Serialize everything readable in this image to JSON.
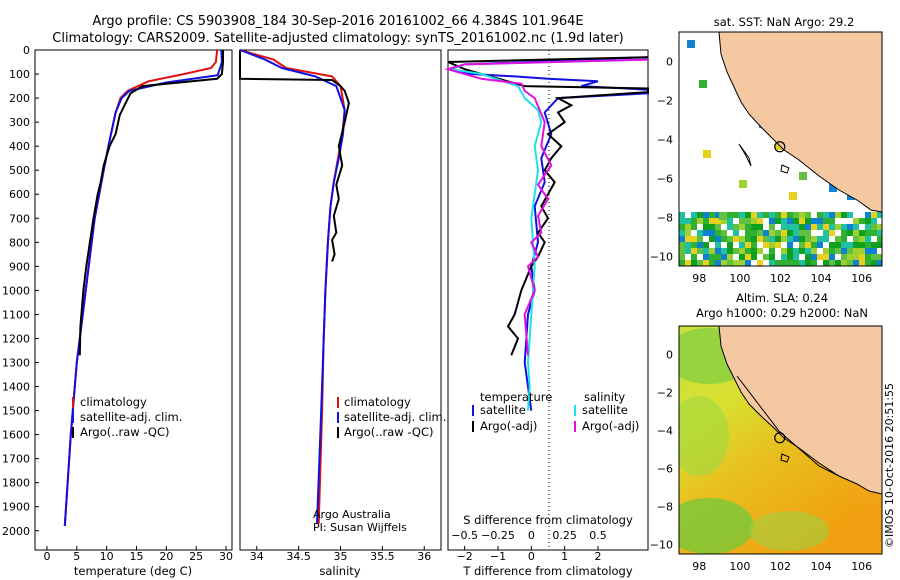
{
  "header": {
    "line1": "Argo profile: CS 5903908_184 30-Sep-2016 20161002_66 4.384S 101.964E",
    "line2": "Climatology: CARS2009. Satellite-adjusted climatology: synTS_20161002.nc (1.9d later)"
  },
  "colors": {
    "climatology": "#e01010",
    "satellite": "#1010e0",
    "argo": "#000000",
    "satellite_s": "#20e0e8",
    "argo_s": "#e010e0",
    "land": "#f4c8a0",
    "sea_low": "#20a020",
    "sea_high": "#f0a010"
  },
  "chart_data": [
    {
      "type": "line",
      "id": "temperature",
      "xlabel": "temperature (deg C)",
      "ylabel": "",
      "xlim": [
        -2,
        31
      ],
      "ylim": [
        2080,
        0
      ],
      "xticks": [
        0,
        5,
        10,
        15,
        20,
        25,
        30
      ],
      "yticks": [
        0,
        100,
        200,
        300,
        400,
        500,
        600,
        700,
        800,
        900,
        1000,
        1100,
        1200,
        1300,
        1400,
        1500,
        1600,
        1700,
        1800,
        1900,
        2000
      ],
      "series": [
        {
          "name": "climatology",
          "color_key": "climatology",
          "x": [
            28.5,
            28.3,
            27.5,
            23.0,
            17.0,
            13.5,
            12.3,
            11.5,
            10.3,
            9.5,
            8.0,
            7.0,
            6.0,
            5.0,
            4.0,
            3.0
          ],
          "y": [
            0,
            50,
            75,
            100,
            130,
            170,
            200,
            260,
            400,
            500,
            700,
            900,
            1100,
            1300,
            1600,
            1980
          ]
        },
        {
          "name": "satellite-adj. clim.",
          "color_key": "satellite",
          "x": [
            29.2,
            29.3,
            29.0,
            28.6,
            20.0,
            13.8,
            12.5,
            11.5,
            10.3,
            9.5,
            8.0,
            7.0,
            6.0,
            5.0,
            4.0,
            3.0
          ],
          "y": [
            0,
            50,
            75,
            105,
            135,
            170,
            200,
            260,
            400,
            500,
            700,
            900,
            1100,
            1300,
            1600,
            1980
          ]
        },
        {
          "name": "Argo(..raw -QC)",
          "color_key": "argo",
          "x": [
            29.5,
            29.5,
            29.3,
            28.5,
            16.0,
            14.0,
            13.0,
            12.2,
            11.5,
            10.5,
            9.5,
            9.0,
            8.5,
            7.8,
            7.2,
            6.6,
            6.1,
            5.6,
            5.5
          ],
          "y": [
            0,
            50,
            100,
            120,
            150,
            180,
            230,
            270,
            350,
            400,
            480,
            550,
            600,
            700,
            800,
            900,
            1000,
            1150,
            1270
          ]
        }
      ],
      "legend": {
        "position": "lower-center",
        "entries": [
          "climatology",
          "satellite-adj. clim.",
          "Argo(..raw -QC)"
        ]
      }
    },
    {
      "type": "line",
      "id": "salinity",
      "xlabel": "salinity",
      "xlim": [
        33.8,
        36.2
      ],
      "ylim": [
        2080,
        0
      ],
      "xticks": [
        34,
        34.5,
        35,
        35.5,
        36
      ],
      "series": [
        {
          "name": "climatology",
          "color_key": "climatology",
          "x": [
            33.7,
            34.2,
            34.35,
            34.9,
            35.0,
            35.05,
            35.02,
            34.97,
            34.92,
            34.88,
            34.85,
            34.82,
            34.8,
            34.78,
            34.74
          ],
          "y": [
            0,
            40,
            75,
            110,
            150,
            250,
            350,
            450,
            550,
            650,
            800,
            1000,
            1200,
            1500,
            1970
          ]
        },
        {
          "name": "satellite-adj. clim.",
          "color_key": "satellite",
          "x": [
            33.7,
            34.1,
            34.3,
            34.7,
            34.95,
            35.05,
            35.03,
            34.98,
            34.92,
            34.88,
            34.85,
            34.82,
            34.8,
            34.77,
            34.72
          ],
          "y": [
            0,
            40,
            75,
            110,
            150,
            250,
            350,
            450,
            550,
            650,
            800,
            1000,
            1200,
            1500,
            1970
          ]
        },
        {
          "name": "Argo(..raw -QC)",
          "color_key": "argo",
          "x": [
            33.7,
            33.7,
            34.9,
            35.0,
            35.05,
            35.1,
            35.05,
            34.98,
            35.02,
            34.95,
            34.98,
            34.92,
            34.95,
            34.9,
            34.93,
            34.9
          ],
          "y": [
            0,
            120,
            125,
            150,
            170,
            220,
            300,
            400,
            480,
            560,
            620,
            690,
            760,
            790,
            850,
            880
          ]
        }
      ],
      "legend": {
        "position": "lower-center",
        "entries": [
          "climatology",
          "satellite-adj. clim.",
          "Argo(..raw -QC)"
        ]
      },
      "annotations": [
        "Argo Australia",
        "PI: Susan Wijffels"
      ]
    },
    {
      "type": "line",
      "id": "differences",
      "xlabel": "T difference from climatology",
      "x2label": "S difference from climatology",
      "xlim": [
        -2.5,
        3.5
      ],
      "x2lim": [
        -0.625,
        0.875
      ],
      "ylim": [
        2080,
        0
      ],
      "xticks": [
        -2,
        -1,
        0,
        1,
        2
      ],
      "x2ticks": [
        -0.5,
        -0.25,
        0,
        0.25,
        0.5
      ],
      "series": [
        {
          "name": "temperature satellite",
          "color_key": "satellite",
          "x": [
            3.5,
            -2.0,
            -2.5,
            -1.8,
            -0.5,
            0.5,
            2.0,
            1.5,
            3.5,
            3.5,
            0.8,
            0.4,
            0.6,
            0.3,
            0.4,
            0.1,
            0.2,
            0.0,
            0.1,
            -0.1,
            -0.2,
            0.0
          ],
          "y": [
            30,
            60,
            80,
            100,
            110,
            120,
            130,
            150,
            165,
            180,
            200,
            260,
            350,
            450,
            550,
            650,
            800,
            900,
            1000,
            1100,
            1300,
            1500
          ]
        },
        {
          "name": "temperature Argo(-adj)",
          "color_key": "argo",
          "x": [
            3.5,
            -2.5,
            -2.0,
            -1.5,
            -0.2,
            3.5,
            3.5,
            0.8,
            1.2,
            0.8,
            1.0,
            0.5,
            0.9,
            0.6,
            0.4,
            0.7,
            0.5,
            0.3,
            0.5,
            0.2,
            0.4,
            0.2,
            0.0,
            -0.3,
            -0.5,
            -0.7,
            -0.4,
            -0.6
          ],
          "y": [
            30,
            50,
            80,
            100,
            150,
            160,
            175,
            200,
            230,
            260,
            300,
            350,
            400,
            450,
            500,
            550,
            600,
            650,
            700,
            760,
            800,
            860,
            900,
            1000,
            1100,
            1150,
            1200,
            1270
          ]
        },
        {
          "name": "salinity satellite",
          "color_key": "satellite_s",
          "x": [
            3.5,
            -2.0,
            -2.4,
            -1.5,
            -0.4,
            -0.2,
            0.2,
            0.3,
            0.1,
            0.2,
            0.0,
            0.1,
            0.0,
            -0.1,
            -0.05,
            -0.1
          ],
          "y": [
            40,
            60,
            80,
            100,
            150,
            200,
            250,
            300,
            400,
            500,
            700,
            900,
            1100,
            1300,
            1400,
            1500
          ]
        },
        {
          "name": "salinity Argo(-adj)",
          "color_key": "argo_s",
          "x": [
            3.5,
            -2.0,
            -2.5,
            -1.5,
            -0.3,
            -0.2,
            0.1,
            0.4,
            0.3,
            0.6,
            0.2,
            0.5,
            0.2,
            0.3,
            0.0,
            0.2,
            -0.1,
            0.1,
            -0.2,
            -0.1
          ],
          "y": [
            40,
            60,
            80,
            120,
            140,
            170,
            200,
            300,
            400,
            480,
            560,
            620,
            690,
            760,
            800,
            860,
            900,
            1000,
            1100,
            1270
          ]
        }
      ],
      "legend": {
        "position": "lower-center",
        "entries": [
          {
            "group": "temperature",
            "items": [
              "satellite",
              "Argo(-adj)"
            ]
          },
          {
            "group": "salinity",
            "items": [
              "satellite",
              "Argo(-adj)"
            ]
          }
        ]
      }
    },
    {
      "type": "heatmap",
      "id": "sst_map",
      "title": "sat. SST: NaN Argo: 29.2",
      "xlim": [
        97,
        107
      ],
      "ylim": [
        -10.5,
        1.5
      ],
      "xticks": [
        98,
        100,
        102,
        104,
        106
      ],
      "yticks": [
        0,
        -2,
        -4,
        -6,
        -8,
        -10
      ],
      "marker": {
        "lon": 101.964,
        "lat": -4.384
      }
    },
    {
      "type": "heatmap",
      "id": "sla_map",
      "title": "Altim. SLA: 0.24",
      "subtitle": "Argo h1000: 0.29 h2000: NaN",
      "xlim": [
        97,
        107
      ],
      "ylim": [
        -10.5,
        1.5
      ],
      "xticks": [
        98,
        100,
        102,
        104,
        106
      ],
      "yticks": [
        0,
        -2,
        -4,
        -6,
        -8,
        -10
      ],
      "marker": {
        "lon": 101.964,
        "lat": -4.384
      }
    }
  ],
  "credit": "©IMOS 10-Oct-2016 20:51:55",
  "legend_labels": {
    "climatology": "climatology",
    "satellite_adj": "satellite-adj. clim.",
    "argo_raw": "Argo(..raw -QC)",
    "temperature": "temperature",
    "salinity": "salinity",
    "satellite": "satellite",
    "argo_adj": "Argo(-adj)"
  },
  "annotations": {
    "institution": "Argo Australia",
    "pi": "PI: Susan Wijffels"
  }
}
